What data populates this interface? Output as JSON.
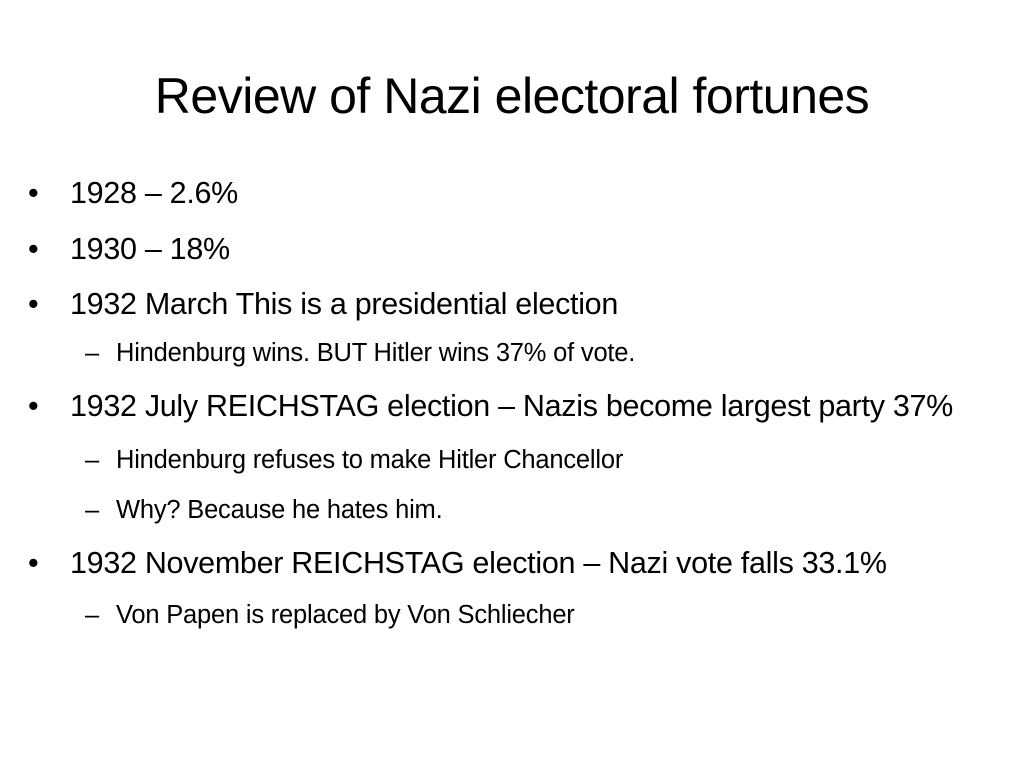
{
  "slide": {
    "title": "Review of Nazi electoral fortunes",
    "bullet_marker": "•",
    "sub_marker": "–",
    "items": [
      {
        "text": "1928 – 2.6%",
        "subitems": []
      },
      {
        "text": "1930 – 18%",
        "subitems": []
      },
      {
        "text": "1932 March This is a presidential election",
        "subitems": [
          "Hindenburg wins. BUT Hitler wins 37% of vote."
        ]
      },
      {
        "text": "1932 July REICHSTAG election – Nazis become largest party 37%",
        "subitems": [
          "Hindenburg refuses to make Hitler Chancellor",
          "Why? Because he hates him."
        ]
      },
      {
        "text": "1932 November REICHSTAG election – Nazi vote falls 33.1%",
        "subitems": [
          "Von Papen is replaced by Von Schliecher"
        ]
      }
    ]
  }
}
